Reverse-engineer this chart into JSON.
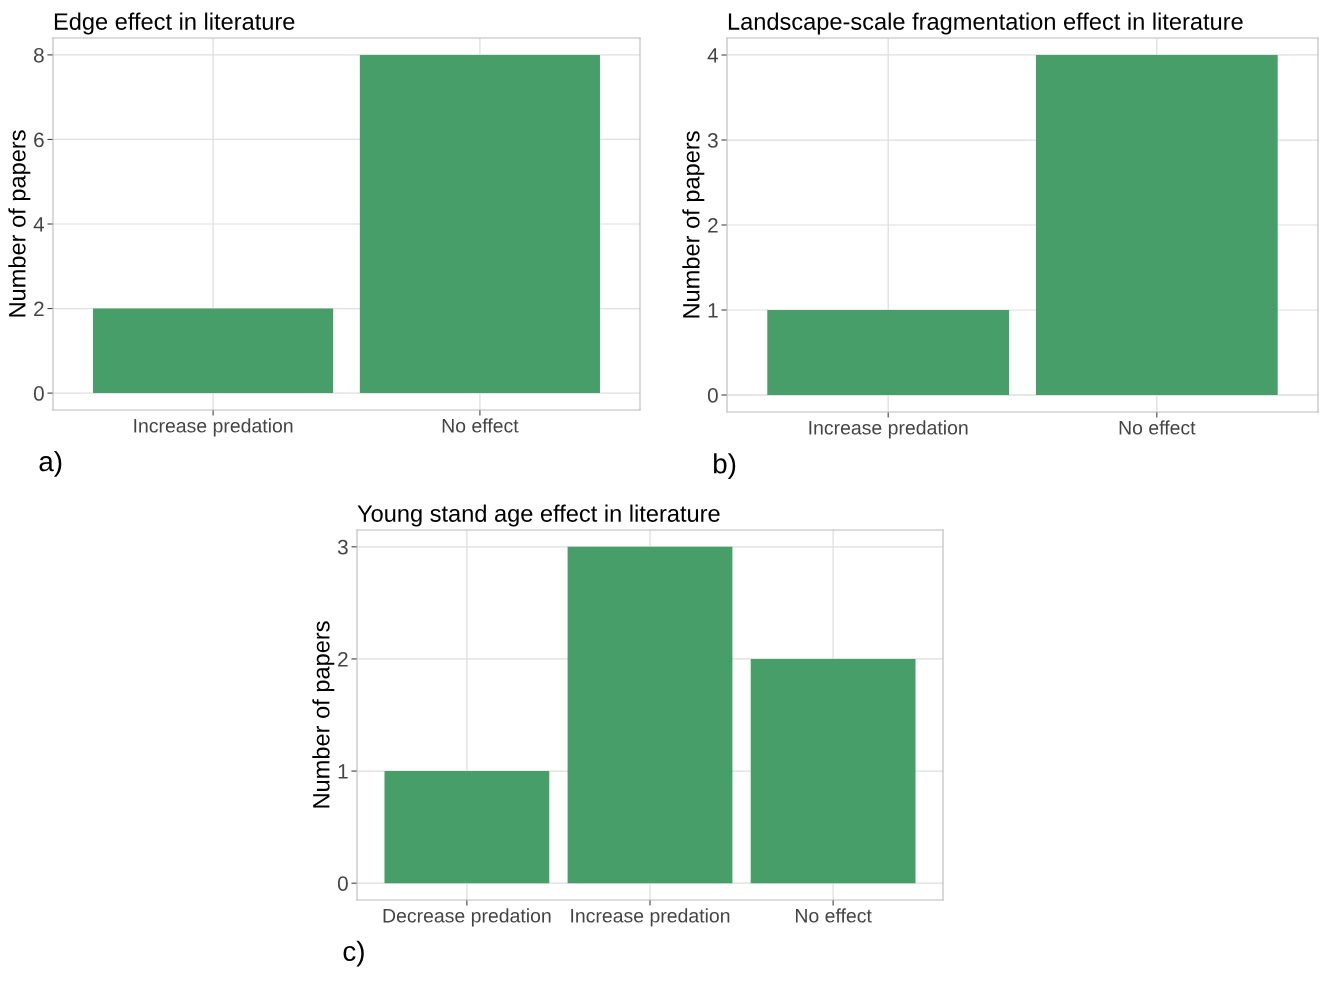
{
  "chart_data": [
    {
      "type": "bar",
      "title": "Edge effect in literature",
      "ylabel": "Number of papers",
      "categories": [
        "Increase predation",
        "No effect"
      ],
      "values": [
        2,
        8
      ],
      "color": "#479e68",
      "ylim": [
        -0.4,
        8.4
      ],
      "yticks": [
        0,
        2,
        4,
        6,
        8
      ],
      "grid": true,
      "annotations": [
        "a)"
      ]
    },
    {
      "type": "bar",
      "title": "Landscape-scale fragmentation effect in literature",
      "ylabel": "Number of papers",
      "categories": [
        "Increase predation",
        "No effect"
      ],
      "values": [
        1,
        4
      ],
      "color": "#479e68",
      "ylim": [
        -0.2,
        4.2
      ],
      "yticks": [
        0,
        1,
        2,
        3,
        4
      ],
      "grid": true,
      "annotations": [
        "b)"
      ]
    },
    {
      "type": "bar",
      "title": "Young stand age effect in literature",
      "ylabel": "Number of papers",
      "categories": [
        "Decrease predation",
        "Increase predation",
        "No effect"
      ],
      "values": [
        1,
        3,
        2
      ],
      "color": "#479e68",
      "ylim": [
        -0.15,
        3.15
      ],
      "yticks": [
        0,
        1,
        2,
        3
      ],
      "grid": true,
      "annotations": [
        "c)"
      ]
    }
  ]
}
